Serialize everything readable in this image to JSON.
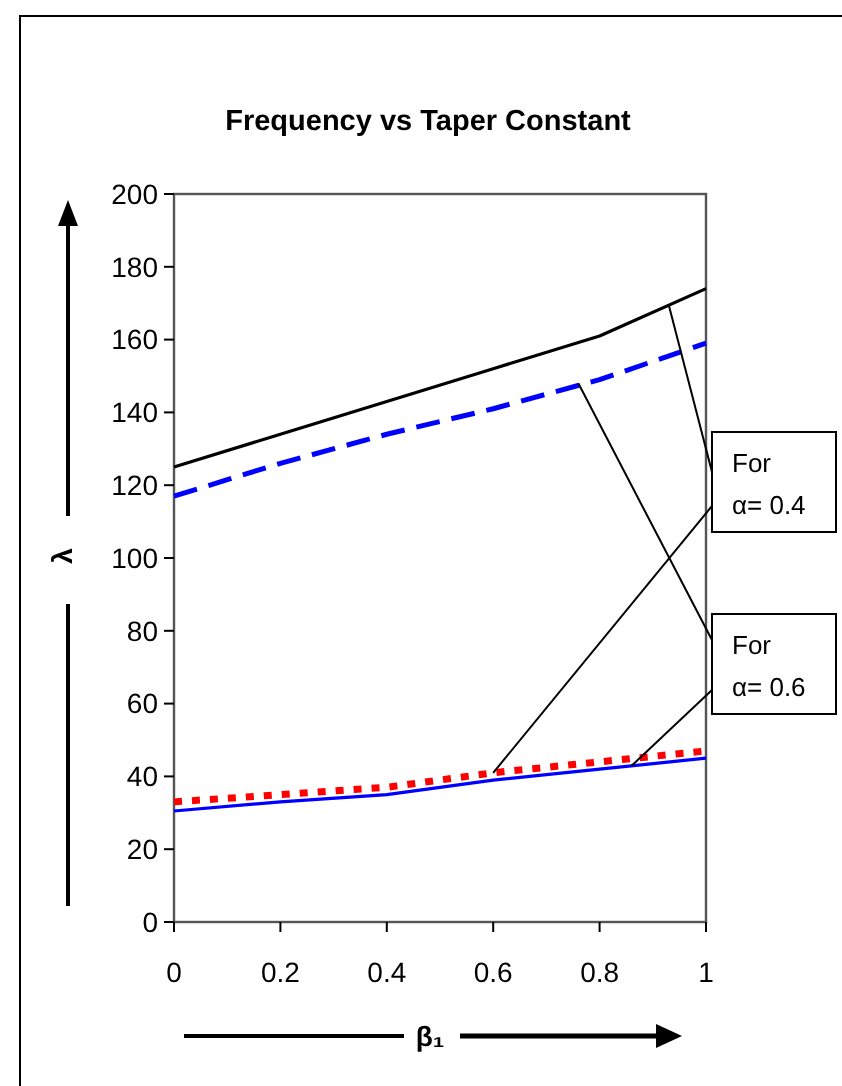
{
  "chart_data": {
    "type": "line",
    "title": "Frequency vs Taper Constant",
    "xlabel": "β₁",
    "ylabel": "λ",
    "x": [
      0,
      0.2,
      0.4,
      0.6,
      0.8,
      1
    ],
    "series": [
      {
        "color": "#000000",
        "line_style": "solid",
        "values": [
          125,
          134,
          143,
          152,
          161,
          174
        ]
      },
      {
        "color": "#0000ff",
        "line_style": "dashed",
        "values": [
          117,
          126,
          134,
          141,
          149,
          159
        ]
      },
      {
        "color": "#ff0000",
        "line_style": "dotted",
        "values": [
          33,
          35,
          37,
          41,
          44,
          47
        ]
      },
      {
        "color": "#0000ff",
        "line_style": "solid",
        "values": [
          30.5,
          33,
          35,
          39,
          42,
          45
        ]
      }
    ],
    "xlim": [
      0,
      1
    ],
    "xticks": [
      0,
      0.2,
      0.4,
      0.6,
      0.8,
      1
    ],
    "ylim": [
      0,
      200
    ],
    "yticks": [
      0,
      20,
      40,
      60,
      80,
      100,
      120,
      140,
      160,
      180,
      200
    ],
    "grid": false,
    "marker": "none",
    "annotations": [
      {
        "text": "For α= 0.4",
        "x": 0.93,
        "y": 169.5
      },
      {
        "text": "For α= 0.6",
        "x": 0.76,
        "y": 148
      }
    ]
  }
}
